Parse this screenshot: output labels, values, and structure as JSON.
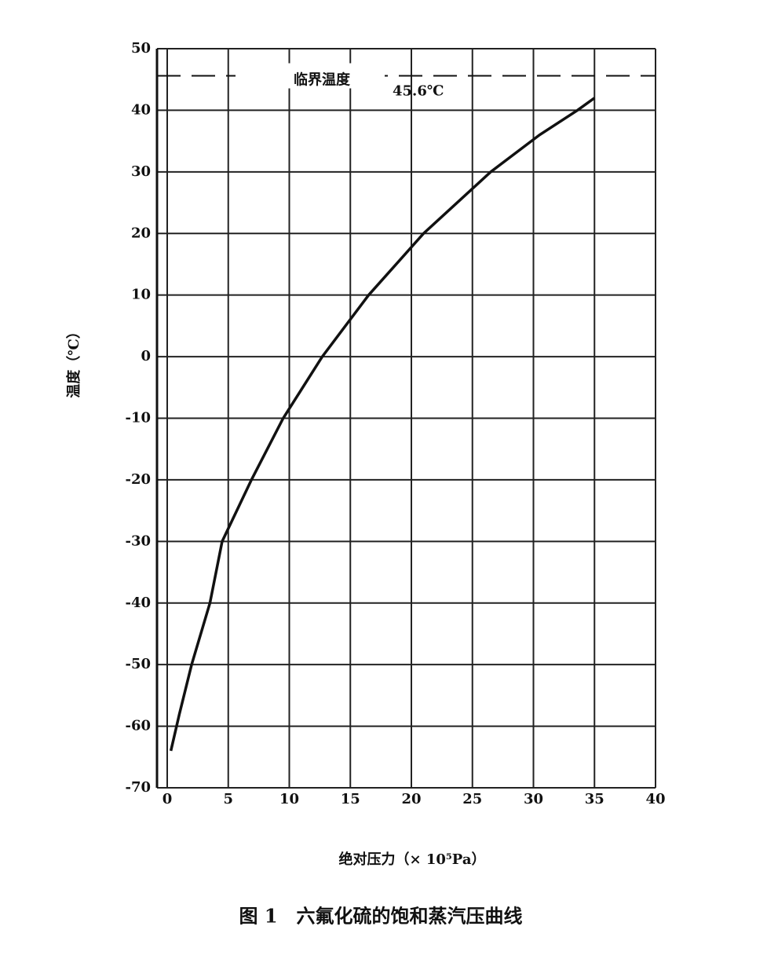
{
  "chart_data": {
    "type": "line",
    "x_label": "绝对压力（× 10⁵Pa）",
    "y_label": "温度（℃）",
    "caption": "图 1　六氟化硫的饱和蒸汽压曲线",
    "x": [
      0.3,
      1,
      2,
      3.5,
      4.5,
      6.9,
      9.5,
      12.7,
      16.5,
      21,
      26.5,
      30.5,
      33.6,
      35
    ],
    "series": [
      {
        "color": "#111111",
        "values": [
          -64,
          -58,
          -50,
          -40,
          -30,
          -20,
          -10,
          0,
          10,
          20,
          30,
          36,
          40,
          42
        ]
      }
    ],
    "xlim": [
      0,
      40
    ],
    "xticks": [
      0,
      5,
      10,
      15,
      20,
      25,
      30,
      35,
      40
    ],
    "ylim": [
      -70,
      50
    ],
    "yticks": [
      -70,
      -60,
      -50,
      -40,
      -30,
      -20,
      -10,
      0,
      10,
      20,
      30,
      40,
      50
    ],
    "grid": true,
    "critical": {
      "label": "临界温度",
      "value": 45.6,
      "value_label": "45.6℃"
    }
  }
}
